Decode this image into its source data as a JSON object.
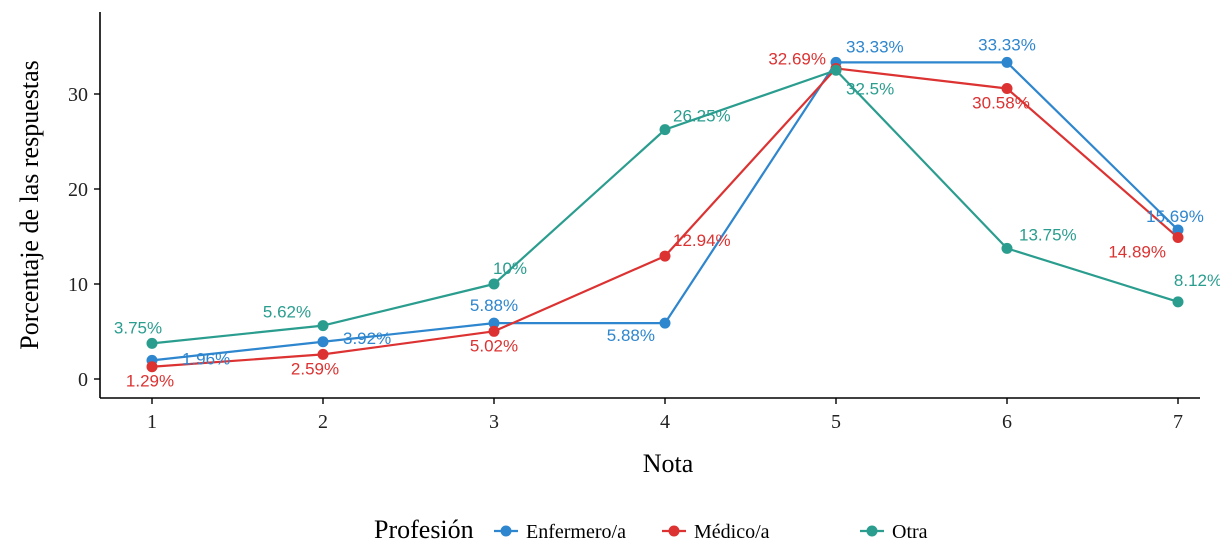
{
  "chart_data": {
    "type": "line",
    "x": [
      1,
      2,
      3,
      4,
      5,
      6,
      7
    ],
    "xlabel": "Nota",
    "ylabel": "Porcentaje de las respuestas",
    "xlim": [
      0.7,
      7.2
    ],
    "ylim": [
      -1.5,
      38
    ],
    "yticks": [
      0,
      10,
      20,
      30
    ],
    "xticks": [
      1,
      2,
      3,
      4,
      5,
      6,
      7
    ],
    "legend_title": "Profesión",
    "legend_position": "bottom",
    "series": [
      {
        "name": "Enfermero/a",
        "color": "#2E86CE",
        "values": [
          1.96,
          3.92,
          5.88,
          5.88,
          33.33,
          33.33,
          15.69
        ],
        "labels": [
          "1.96%",
          "3.92%",
          "5.88%",
          "5.88%",
          "33.33%",
          "33.33%",
          "15.69%"
        ]
      },
      {
        "name": "Médico/a",
        "color": "#DC3232",
        "values": [
          1.29,
          2.59,
          5.02,
          12.94,
          32.69,
          30.58,
          14.89
        ],
        "labels": [
          "1.29%",
          "2.59%",
          "5.02%",
          "12.94%",
          "32.69%",
          "30.58%",
          "14.89%"
        ]
      },
      {
        "name": "Otra",
        "color": "#2A9D8F",
        "values": [
          3.75,
          5.62,
          10,
          26.25,
          32.5,
          13.75,
          8.12
        ],
        "labels": [
          "3.75%",
          "5.62%",
          "10%",
          "26.25%",
          "32.5%",
          "13.75%",
          "8.12%"
        ]
      }
    ]
  }
}
